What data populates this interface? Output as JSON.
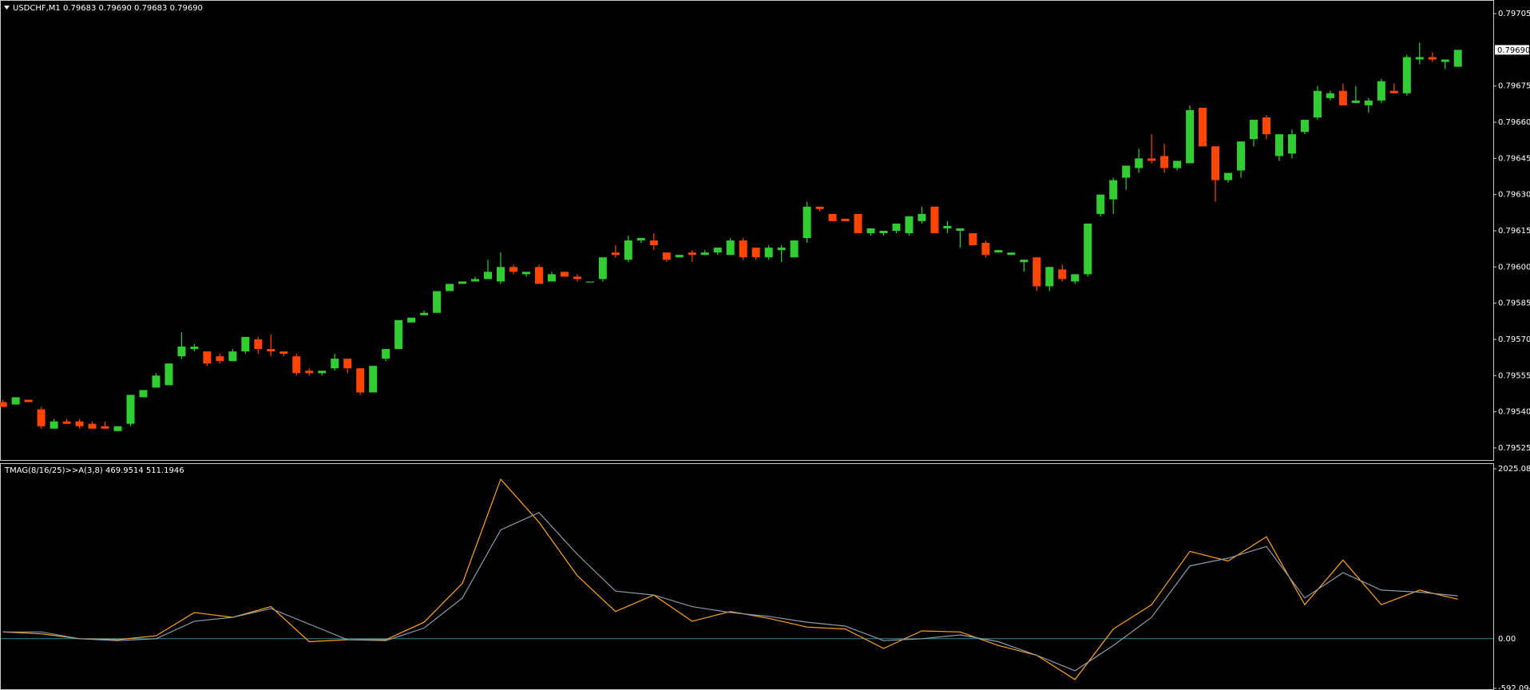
{
  "chart_data": [
    {
      "type": "candlestick",
      "title": "USDCHF,M1  0.79683 0.79690 0.79683 0.79690",
      "up_color": "#32cd32",
      "down_color": "#ff4500",
      "open": [
        0.79544,
        0.79543,
        0.79545,
        0.79541,
        0.79533,
        0.79536,
        0.79536,
        0.79535,
        0.79534,
        0.79532,
        0.79535,
        0.79546,
        0.7955,
        0.79551,
        0.79563,
        0.79566,
        0.79565,
        0.79563,
        0.79561,
        0.79565,
        0.7957,
        0.79566,
        0.79565,
        0.79563,
        0.79557,
        0.79556,
        0.79558,
        0.79562,
        0.79558,
        0.79548,
        0.79562,
        0.79566,
        0.79577,
        0.7958,
        0.79581,
        0.7959,
        0.79593,
        0.79594,
        0.79595,
        0.79594,
        0.796,
        0.79597,
        0.796,
        0.79594,
        0.79598,
        0.79596,
        0.79594,
        0.79595,
        0.79606,
        0.79603,
        0.79611,
        0.79611,
        0.79606,
        0.79604,
        0.79606,
        0.79605,
        0.79606,
        0.79605,
        0.79611,
        0.79608,
        0.79604,
        0.79607,
        0.79604,
        0.79612,
        0.79625,
        0.79622,
        0.7962,
        0.79622,
        0.79614,
        0.79614,
        0.79615,
        0.79614,
        0.79619,
        0.79625,
        0.79616,
        0.79615,
        0.79614,
        0.7961,
        0.79606,
        0.79605,
        0.79602,
        0.79604,
        0.79592,
        0.79599,
        0.79594,
        0.79597,
        0.79622,
        0.79628,
        0.79637,
        0.79641,
        0.79645,
        0.79646,
        0.79641,
        0.79643,
        0.79666,
        0.7965,
        0.79636,
        0.7964,
        0.79653,
        0.79662,
        0.79646,
        0.79647,
        0.79656,
        0.79662,
        0.7967,
        0.79673,
        0.79668,
        0.79667,
        0.79669,
        0.79673,
        0.79672,
        0.79686,
        0.79687,
        0.79685,
        0.79683
      ],
      "high": [
        0.79545,
        0.79546,
        0.79545,
        0.79542,
        0.79537,
        0.79537,
        0.79537,
        0.79536,
        0.79536,
        0.79534,
        0.79547,
        0.79549,
        0.79556,
        0.7956,
        0.79573,
        0.79568,
        0.79565,
        0.79564,
        0.79566,
        0.79571,
        0.79571,
        0.79572,
        0.79565,
        0.79564,
        0.79558,
        0.79557,
        0.79564,
        0.79562,
        0.79558,
        0.79559,
        0.79566,
        0.79578,
        0.79579,
        0.79582,
        0.7959,
        0.79593,
        0.79594,
        0.79596,
        0.79603,
        0.79606,
        0.79601,
        0.79598,
        0.79601,
        0.79598,
        0.79598,
        0.79597,
        0.79594,
        0.79604,
        0.79609,
        0.79613,
        0.79612,
        0.79614,
        0.79606,
        0.79605,
        0.79607,
        0.79607,
        0.79608,
        0.79612,
        0.79612,
        0.79608,
        0.79609,
        0.79609,
        0.79611,
        0.79627,
        0.79625,
        0.79622,
        0.7962,
        0.79622,
        0.79616,
        0.79615,
        0.79618,
        0.79621,
        0.79625,
        0.79625,
        0.79619,
        0.79616,
        0.79614,
        0.79611,
        0.79607,
        0.79606,
        0.79603,
        0.79604,
        0.796,
        0.79601,
        0.79597,
        0.79618,
        0.7963,
        0.79637,
        0.79642,
        0.79649,
        0.79655,
        0.79651,
        0.79644,
        0.79667,
        0.79666,
        0.7965,
        0.79639,
        0.79652,
        0.79661,
        0.79663,
        0.79655,
        0.79657,
        0.79661,
        0.79675,
        0.79673,
        0.79676,
        0.79675,
        0.7967,
        0.79678,
        0.79676,
        0.79688,
        0.79693,
        0.79689,
        0.79686,
        0.7969
      ],
      "low": [
        0.79542,
        0.79543,
        0.79544,
        0.79533,
        0.79533,
        0.79535,
        0.79533,
        0.79533,
        0.79533,
        0.79532,
        0.79534,
        0.79546,
        0.7955,
        0.79551,
        0.79562,
        0.79565,
        0.79559,
        0.7956,
        0.79561,
        0.79564,
        0.79564,
        0.79563,
        0.79563,
        0.79555,
        0.79555,
        0.79555,
        0.79557,
        0.79556,
        0.79547,
        0.79548,
        0.79561,
        0.79566,
        0.79577,
        0.7958,
        0.79581,
        0.7959,
        0.79593,
        0.79594,
        0.79595,
        0.79593,
        0.79597,
        0.79596,
        0.79593,
        0.79594,
        0.79596,
        0.79594,
        0.79594,
        0.79594,
        0.79604,
        0.79602,
        0.7961,
        0.79607,
        0.79602,
        0.79604,
        0.79602,
        0.79605,
        0.79605,
        0.79605,
        0.79603,
        0.79603,
        0.79603,
        0.79602,
        0.79604,
        0.7961,
        0.79623,
        0.79619,
        0.79619,
        0.79614,
        0.79613,
        0.79613,
        0.79614,
        0.79613,
        0.79618,
        0.79614,
        0.79614,
        0.79608,
        0.79609,
        0.79604,
        0.79606,
        0.79605,
        0.79598,
        0.7959,
        0.7959,
        0.79594,
        0.79593,
        0.79596,
        0.79621,
        0.79622,
        0.79632,
        0.79639,
        0.79643,
        0.79639,
        0.7964,
        0.79643,
        0.7965,
        0.79627,
        0.79635,
        0.79637,
        0.7965,
        0.79653,
        0.79644,
        0.79645,
        0.79655,
        0.79661,
        0.79669,
        0.79667,
        0.79668,
        0.79664,
        0.79668,
        0.79672,
        0.79671,
        0.79684,
        0.79685,
        0.79682,
        0.79683
      ],
      "close": [
        0.79542,
        0.79546,
        0.79544,
        0.79534,
        0.79536,
        0.79535,
        0.79534,
        0.79533,
        0.79533,
        0.79534,
        0.79547,
        0.79549,
        0.79555,
        0.7956,
        0.79567,
        0.79567,
        0.7956,
        0.79561,
        0.79565,
        0.79571,
        0.79566,
        0.79565,
        0.79564,
        0.79556,
        0.79556,
        0.79557,
        0.79562,
        0.79558,
        0.79548,
        0.79559,
        0.79566,
        0.79578,
        0.79579,
        0.79581,
        0.7959,
        0.79593,
        0.79594,
        0.79595,
        0.79598,
        0.796,
        0.79598,
        0.79598,
        0.79593,
        0.79597,
        0.79596,
        0.79595,
        0.79594,
        0.79604,
        0.79605,
        0.79611,
        0.79612,
        0.79609,
        0.79603,
        0.79605,
        0.79605,
        0.79606,
        0.79608,
        0.79611,
        0.79604,
        0.79604,
        0.79608,
        0.79608,
        0.79611,
        0.79625,
        0.79624,
        0.79619,
        0.79619,
        0.79614,
        0.79616,
        0.79615,
        0.79618,
        0.79621,
        0.79622,
        0.79614,
        0.79617,
        0.79616,
        0.79609,
        0.79605,
        0.79607,
        0.79606,
        0.79603,
        0.79592,
        0.796,
        0.79595,
        0.79597,
        0.79618,
        0.7963,
        0.79636,
        0.79642,
        0.79645,
        0.79644,
        0.79641,
        0.79644,
        0.79665,
        0.7965,
        0.79636,
        0.79639,
        0.79652,
        0.79661,
        0.79655,
        0.79655,
        0.79655,
        0.79661,
        0.79673,
        0.79672,
        0.79667,
        0.79669,
        0.79669,
        0.79677,
        0.79672,
        0.79687,
        0.79687,
        0.79686,
        0.79686,
        0.7969
      ],
      "ylim": [
        0.7952,
        0.7971
      ],
      "yticks": [
        0.79705,
        0.79675,
        {
          "value": 0.7966,
          "label": "0.79660"
        },
        0.79645,
        {
          "value": 0.7963,
          "label": "0.79630"
        },
        0.79615,
        {
          "value": 0.796,
          "label": "0.79600"
        },
        0.79585,
        {
          "value": 0.7957,
          "label": "0.79570"
        },
        0.79555,
        {
          "value": 0.7954,
          "label": "0.79540"
        },
        0.79525
      ],
      "last_price": {
        "value": 0.7969,
        "label": "0.79690"
      }
    },
    {
      "type": "line",
      "title": "TMAG(8/16/25)>>A(3,8) 469.9514 511.1946",
      "x": [
        0,
        3,
        6,
        9,
        12,
        15,
        18,
        21,
        24,
        27,
        30,
        33,
        36,
        39,
        42,
        45,
        48,
        51,
        54,
        57,
        60,
        63,
        66,
        69,
        72,
        75,
        78,
        81,
        84,
        87,
        90,
        93,
        96,
        99,
        102,
        105,
        108,
        111,
        114
      ],
      "series": [
        {
          "color": "#ffa21f",
          "values": [
            81,
            58,
            0,
            -12,
            35,
            312,
            255,
            382,
            -35,
            -12,
            -12,
            197,
            660,
            1900,
            1388,
            752,
            324,
            520,
            208,
            324,
            243,
            139,
            116,
            -116,
            93,
            81,
            -81,
            -197,
            -486,
            116,
            405,
            1041,
            926,
            1215,
            405,
            937,
            405,
            579,
            470
          ]
        },
        {
          "color": "#8c9aa8",
          "values": [
            81,
            81,
            0,
            -23,
            0,
            208,
            255,
            359,
            174,
            -12,
            -23,
            127,
            486,
            1296,
            1504,
            1007,
            567,
            520,
            382,
            312,
            266,
            197,
            150,
            -23,
            0,
            46,
            -35,
            -197,
            -382,
            -81,
            255,
            868,
            960,
            1099,
            486,
            787,
            579,
            555,
            511
          ]
        }
      ],
      "ylim": [
        -592.0942,
        2025.081
      ],
      "yticks": [
        2025.081,
        {
          "value": 0,
          "label": "0.00"
        },
        -592.0942
      ],
      "zero_line_color": "#2b8a99"
    }
  ]
}
